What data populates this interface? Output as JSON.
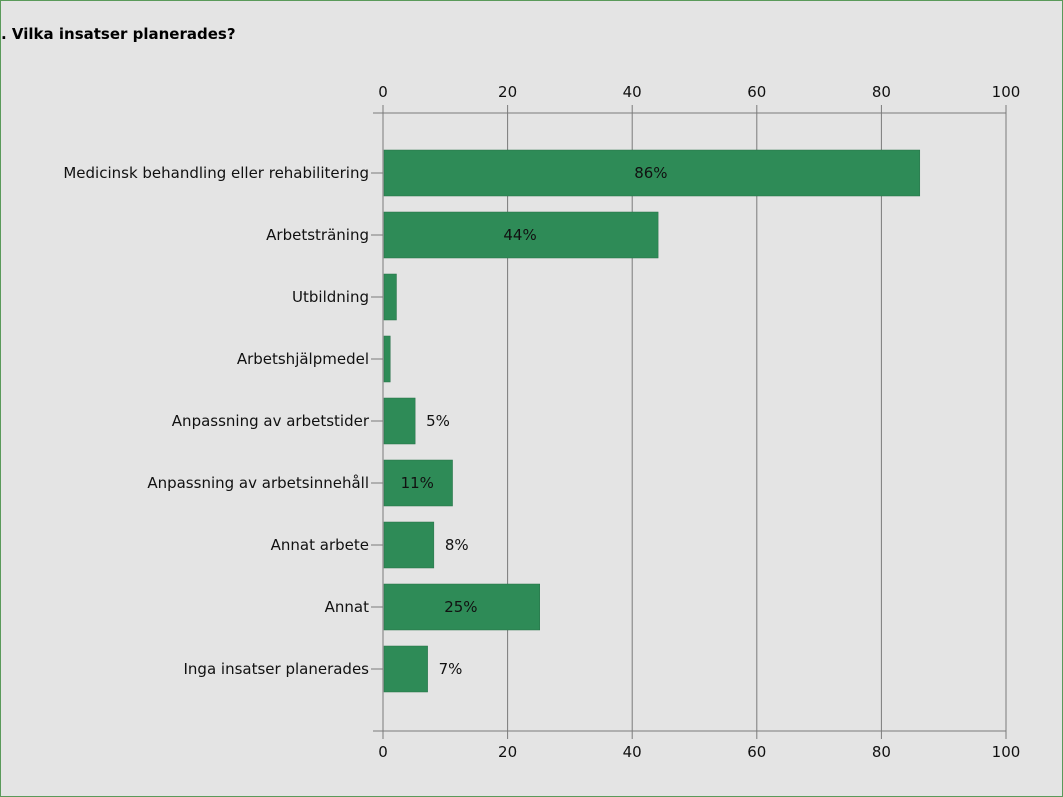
{
  "chart_data": {
    "type": "bar",
    "orientation": "horizontal",
    "title": ". Vilka insatser planerades?",
    "categories": [
      "Medicinsk behandling eller rehabilitering",
      "Arbetsträning",
      "Utbildning",
      "Arbetshjälpmedel",
      "Anpassning av arbetstider",
      "Anpassning av arbetsinnehåll",
      "Annat arbete",
      "Annat",
      "Inga insatser planerades"
    ],
    "values": [
      86,
      44,
      2,
      1,
      5,
      11,
      8,
      25,
      7
    ],
    "data_labels": [
      "86%",
      "44%",
      "",
      "",
      "5%",
      "11%",
      "8%",
      "25%",
      "7%"
    ],
    "xlim": [
      0,
      100
    ],
    "x_ticks": [
      0,
      20,
      40,
      60,
      80,
      100
    ],
    "x_tick_labels": [
      "0",
      "20",
      "40",
      "60",
      "80",
      "100"
    ],
    "grid": true,
    "bar_color": "#2e8b57",
    "axis_position": "top-and-bottom"
  }
}
